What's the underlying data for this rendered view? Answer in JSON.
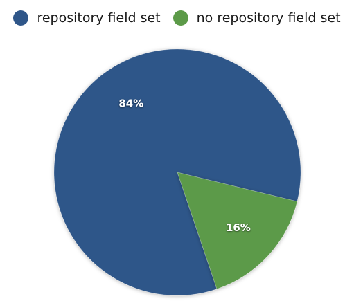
{
  "chart_data": {
    "type": "pie",
    "legend": "top",
    "slices": [
      {
        "name": "repository field set",
        "value": 84,
        "label": "84%",
        "color": "#2f5689"
      },
      {
        "name": "no repository field set",
        "value": 16,
        "label": "16%",
        "color": "#5c9a48"
      }
    ]
  }
}
